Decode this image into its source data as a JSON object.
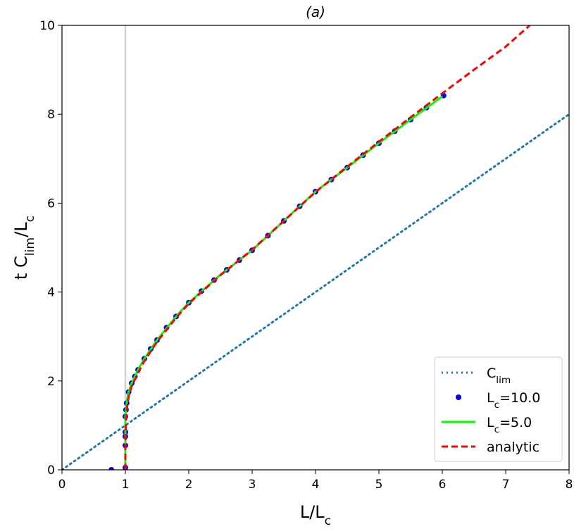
{
  "chart_data": {
    "type": "line",
    "title": "(a)",
    "xlabel": [
      {
        "text": "L/L"
      },
      {
        "text": "c",
        "sub": true
      }
    ],
    "ylabel": [
      {
        "text": "t C"
      },
      {
        "text": "lim",
        "sub": true
      },
      {
        "text": "/L"
      },
      {
        "text": "c",
        "sub": true
      }
    ],
    "xlim": [
      0,
      8
    ],
    "ylim": [
      0,
      10
    ],
    "xticks": [
      0,
      1,
      2,
      3,
      4,
      5,
      6,
      7,
      8
    ],
    "yticks": [
      0,
      2,
      4,
      6,
      8,
      10
    ],
    "vline": {
      "x": 1,
      "color": "#d3d3d3"
    },
    "legend": "lower right",
    "series": [
      {
        "name": [
          {
            "text": "C"
          },
          {
            "text": "lim",
            "sub": true
          }
        ],
        "style": "dotted",
        "color": "#1f77b4",
        "x": [
          0,
          8
        ],
        "values": [
          0,
          8
        ]
      },
      {
        "name": [
          {
            "text": "L"
          },
          {
            "text": "c",
            "sub": true
          },
          {
            "text": "=10.0"
          }
        ],
        "style": "dots",
        "color": "#0000ff",
        "x": [
          0.78,
          1.0,
          1.0,
          1.0,
          1.0,
          1.0,
          1.01,
          1.02,
          1.05,
          1.1,
          1.15,
          1.2,
          1.3,
          1.4,
          1.5,
          1.65,
          1.8,
          2.0,
          2.2,
          2.4,
          2.6,
          2.8,
          3.0,
          3.25,
          3.5,
          3.75,
          4.0,
          4.25,
          4.5,
          4.75,
          5.0,
          5.25,
          5.5,
          5.75,
          6.02
        ],
        "values": [
          0,
          0.05,
          0.55,
          0.75,
          0.85,
          1.2,
          1.35,
          1.5,
          1.75,
          1.95,
          2.1,
          2.25,
          2.5,
          2.72,
          2.92,
          3.2,
          3.45,
          3.76,
          4.02,
          4.27,
          4.5,
          4.72,
          4.94,
          5.27,
          5.6,
          5.93,
          6.26,
          6.53,
          6.8,
          7.08,
          7.35,
          7.62,
          7.88,
          8.15,
          8.42
        ]
      },
      {
        "name": [
          {
            "text": "L"
          },
          {
            "text": "c",
            "sub": true
          },
          {
            "text": "=5.0"
          }
        ],
        "style": "solid",
        "color": "#00ff00",
        "x": [
          1.0,
          1.0,
          1.0,
          1.01,
          1.02,
          1.05,
          1.1,
          1.2,
          1.3,
          1.5,
          1.8,
          2.0,
          2.5,
          3.0,
          3.5,
          4.0,
          4.5,
          5.0,
          5.5,
          6.0
        ],
        "values": [
          0,
          0.6,
          1.2,
          1.35,
          1.5,
          1.75,
          1.95,
          2.25,
          2.5,
          2.92,
          3.45,
          3.76,
          4.39,
          4.94,
          5.6,
          6.26,
          6.8,
          7.35,
          7.88,
          8.4
        ]
      },
      {
        "name": [
          {
            "text": "analytic"
          }
        ],
        "style": "dashed",
        "color": "#ff0000",
        "x": [
          1.0,
          1.0,
          1.01,
          1.03,
          1.06,
          1.1,
          1.2,
          1.3,
          1.5,
          1.8,
          2.0,
          2.5,
          3.0,
          3.5,
          4.0,
          4.5,
          5.0,
          5.5,
          6.0,
          6.5,
          7.0,
          7.38
        ],
        "values": [
          0,
          0.5,
          1.1,
          1.45,
          1.7,
          1.88,
          2.18,
          2.45,
          2.88,
          3.42,
          3.74,
          4.38,
          4.95,
          5.6,
          6.25,
          6.82,
          7.38,
          7.93,
          8.47,
          9.0,
          9.52,
          10.0
        ]
      }
    ]
  }
}
